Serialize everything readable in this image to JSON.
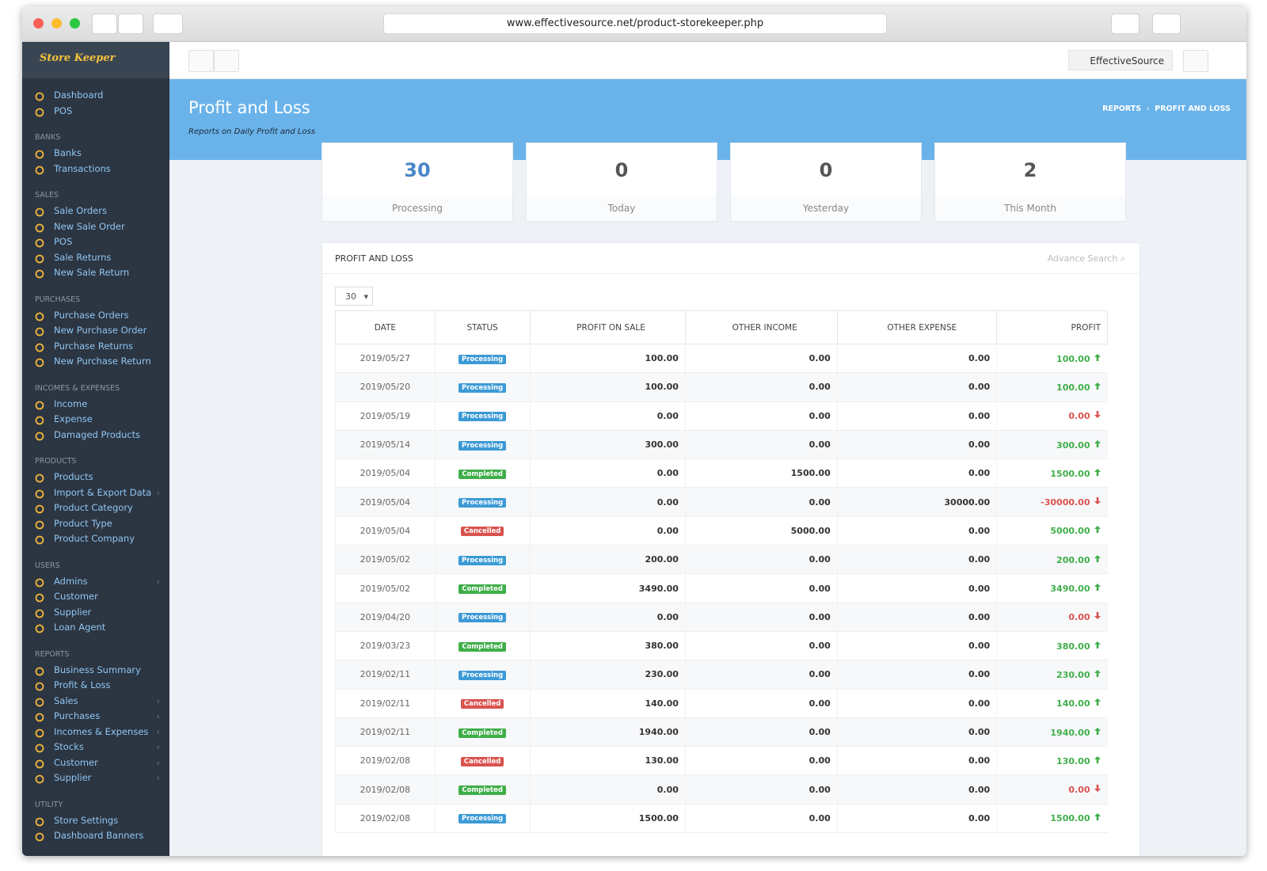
{
  "browser": {
    "url": "www.effectivesource.net/product-storekeeper.php"
  },
  "sidebar": {
    "logo": "Store Keeper",
    "sections": [
      {
        "title": null,
        "items": [
          {
            "label": "Dashboard"
          },
          {
            "label": "POS"
          }
        ]
      },
      {
        "title": "BANKS",
        "items": [
          {
            "label": "Banks"
          },
          {
            "label": "Transactions"
          }
        ]
      },
      {
        "title": "SALES",
        "items": [
          {
            "label": "Sale Orders"
          },
          {
            "label": "New Sale Order"
          },
          {
            "label": "POS"
          },
          {
            "label": "Sale Returns"
          },
          {
            "label": "New Sale Return"
          }
        ]
      },
      {
        "title": "PURCHASES",
        "items": [
          {
            "label": "Purchase Orders"
          },
          {
            "label": "New Purchase Order"
          },
          {
            "label": "Purchase Returns"
          },
          {
            "label": "New Purchase Return"
          }
        ]
      },
      {
        "title": "INCOMES & EXPENSES",
        "items": [
          {
            "label": "Income"
          },
          {
            "label": "Expense"
          },
          {
            "label": "Damaged Products"
          }
        ]
      },
      {
        "title": "PRODUCTS",
        "items": [
          {
            "label": "Products"
          },
          {
            "label": "Import & Export Data",
            "submenu": true
          },
          {
            "label": "Product Category"
          },
          {
            "label": "Product Type"
          },
          {
            "label": "Product Company"
          }
        ]
      },
      {
        "title": "USERS",
        "items": [
          {
            "label": "Admins",
            "submenu": true
          },
          {
            "label": "Customer"
          },
          {
            "label": "Supplier"
          },
          {
            "label": "Loan Agent"
          }
        ]
      },
      {
        "title": "REPORTS",
        "items": [
          {
            "label": "Business Summary"
          },
          {
            "label": "Profit & Loss"
          },
          {
            "label": "Sales",
            "submenu": true
          },
          {
            "label": "Purchases",
            "submenu": true
          },
          {
            "label": "Incomes & Expenses",
            "submenu": true
          },
          {
            "label": "Stocks",
            "submenu": true
          },
          {
            "label": "Customer",
            "submenu": true
          },
          {
            "label": "Supplier",
            "submenu": true
          }
        ]
      },
      {
        "title": "UTILITY",
        "items": [
          {
            "label": "Store Settings"
          },
          {
            "label": "Dashboard Banners"
          }
        ]
      }
    ]
  },
  "topbar": {
    "user": "EffectiveSource"
  },
  "header": {
    "title": "Profit and Loss",
    "subtitle": "Reports on Daily Profit and Loss",
    "breadcrumb": [
      "REPORTS",
      "PROFIT AND LOSS"
    ]
  },
  "stats": [
    {
      "value": "30",
      "label": "Processing",
      "color": "#4a86c8"
    },
    {
      "value": "0",
      "label": "Today",
      "color": "#555555"
    },
    {
      "value": "0",
      "label": "Yesterday",
      "color": "#555555"
    },
    {
      "value": "2",
      "label": "This Month",
      "color": "#555555"
    }
  ],
  "panel": {
    "title": "PROFIT AND LOSS",
    "search": "Advance Search",
    "page_size": "30"
  },
  "status_colors": {
    "Processing": "#3c9ad6",
    "Completed": "#3fae49",
    "Cancelled": "#d9534f"
  },
  "table": {
    "columns": [
      "DATE",
      "STATUS",
      "PROFIT ON SALE",
      "OTHER INCOME",
      "OTHER EXPENSE",
      "PROFIT"
    ],
    "rows": [
      [
        "2019/05/27",
        "Processing",
        "100.00",
        "0.00",
        "0.00",
        "100.00",
        "up"
      ],
      [
        "2019/05/20",
        "Processing",
        "100.00",
        "0.00",
        "0.00",
        "100.00",
        "up"
      ],
      [
        "2019/05/19",
        "Processing",
        "0.00",
        "0.00",
        "0.00",
        "0.00",
        "down"
      ],
      [
        "2019/05/14",
        "Processing",
        "300.00",
        "0.00",
        "0.00",
        "300.00",
        "up"
      ],
      [
        "2019/05/04",
        "Completed",
        "0.00",
        "1500.00",
        "0.00",
        "1500.00",
        "up"
      ],
      [
        "2019/05/04",
        "Processing",
        "0.00",
        "0.00",
        "30000.00",
        "-30000.00",
        "down"
      ],
      [
        "2019/05/04",
        "Cancelled",
        "0.00",
        "5000.00",
        "0.00",
        "5000.00",
        "up"
      ],
      [
        "2019/05/02",
        "Processing",
        "200.00",
        "0.00",
        "0.00",
        "200.00",
        "up"
      ],
      [
        "2019/05/02",
        "Completed",
        "3490.00",
        "0.00",
        "0.00",
        "3490.00",
        "up"
      ],
      [
        "2019/04/20",
        "Processing",
        "0.00",
        "0.00",
        "0.00",
        "0.00",
        "down"
      ],
      [
        "2019/03/23",
        "Completed",
        "380.00",
        "0.00",
        "0.00",
        "380.00",
        "up"
      ],
      [
        "2019/02/11",
        "Processing",
        "230.00",
        "0.00",
        "0.00",
        "230.00",
        "up"
      ],
      [
        "2019/02/11",
        "Cancelled",
        "140.00",
        "0.00",
        "0.00",
        "140.00",
        "up"
      ],
      [
        "2019/02/11",
        "Completed",
        "1940.00",
        "0.00",
        "0.00",
        "1940.00",
        "up"
      ],
      [
        "2019/02/08",
        "Cancelled",
        "130.00",
        "0.00",
        "0.00",
        "130.00",
        "up"
      ],
      [
        "2019/02/08",
        "Completed",
        "0.00",
        "0.00",
        "0.00",
        "0.00",
        "down"
      ],
      [
        "2019/02/08",
        "Processing",
        "1500.00",
        "0.00",
        "0.00",
        "1500.00",
        "up"
      ]
    ]
  }
}
